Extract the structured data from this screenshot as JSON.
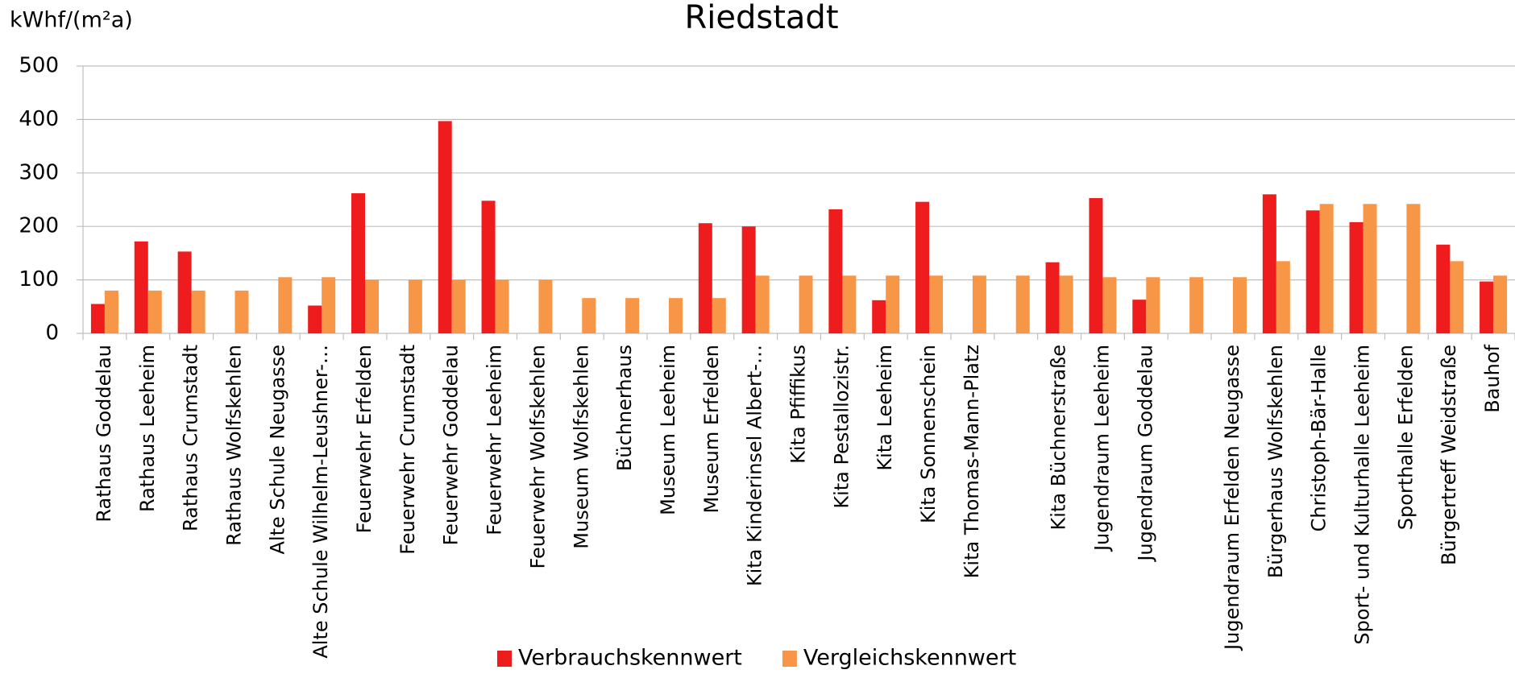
{
  "chart_data": {
    "type": "bar",
    "title": "Riedstadt",
    "y_label": "kWhf/(m²a)",
    "categories": [
      "Rathaus Goddelau",
      "Rathaus Leeheim",
      "Rathaus Crumstadt",
      "Rathaus Wolfskehlen",
      "Alte Schule Neugasse",
      "Alte Schule Wilhelm-Leushner-…",
      "Feuerwehr Erfelden",
      "Feuerwehr Crumstadt",
      "Feuerwehr Goddelau",
      "Feuerwehr Leeheim",
      "Feuerwehr Wolfskehlen",
      "Museum Wolfskehlen",
      "Büchnerhaus",
      "Museum Leeheim",
      "Museum Erfelden",
      "Kita Kinderinsel Albert-…",
      "Kita Pfiffikus",
      "Kita Pestallozistr.",
      "Kita Leeheim",
      "Kita Sonnenschein",
      "Kita Thomas-Mann-Platz",
      null,
      "Kita  Büchnerstraße",
      "Jugendraum Leeheim",
      "Jugendraum Goddelau",
      null,
      "Jugendraum Erfelden Neugasse",
      "Bürgerhaus Wolfskehlen",
      "Christoph-Bär-Halle",
      "Sport- und Kulturhalle Leeheim",
      "Sporthalle Erfelden",
      "Bürgertreff Weidstraße",
      "Bauhof"
    ],
    "series": [
      {
        "name": "Verbrauchskennwert",
        "color": "#ee1c1c",
        "values": [
          55,
          172,
          153,
          null,
          null,
          52,
          262,
          null,
          397,
          248,
          null,
          null,
          null,
          null,
          206,
          200,
          null,
          232,
          62,
          246,
          null,
          null,
          133,
          253,
          63,
          null,
          null,
          260,
          230,
          208,
          null,
          166,
          97
        ]
      },
      {
        "name": "Vergleichskennwert",
        "color": "#f79646",
        "values": [
          80,
          80,
          80,
          80,
          105,
          105,
          100,
          100,
          100,
          100,
          100,
          66,
          66,
          66,
          66,
          108,
          108,
          108,
          108,
          108,
          108,
          108,
          108,
          105,
          105,
          105,
          105,
          135,
          242,
          242,
          242,
          135,
          108
        ]
      }
    ],
    "ylim": [
      0,
      500
    ],
    "yticks": [
      0,
      100,
      200,
      300,
      400,
      500
    ],
    "grid": true,
    "legend": "bottom"
  }
}
